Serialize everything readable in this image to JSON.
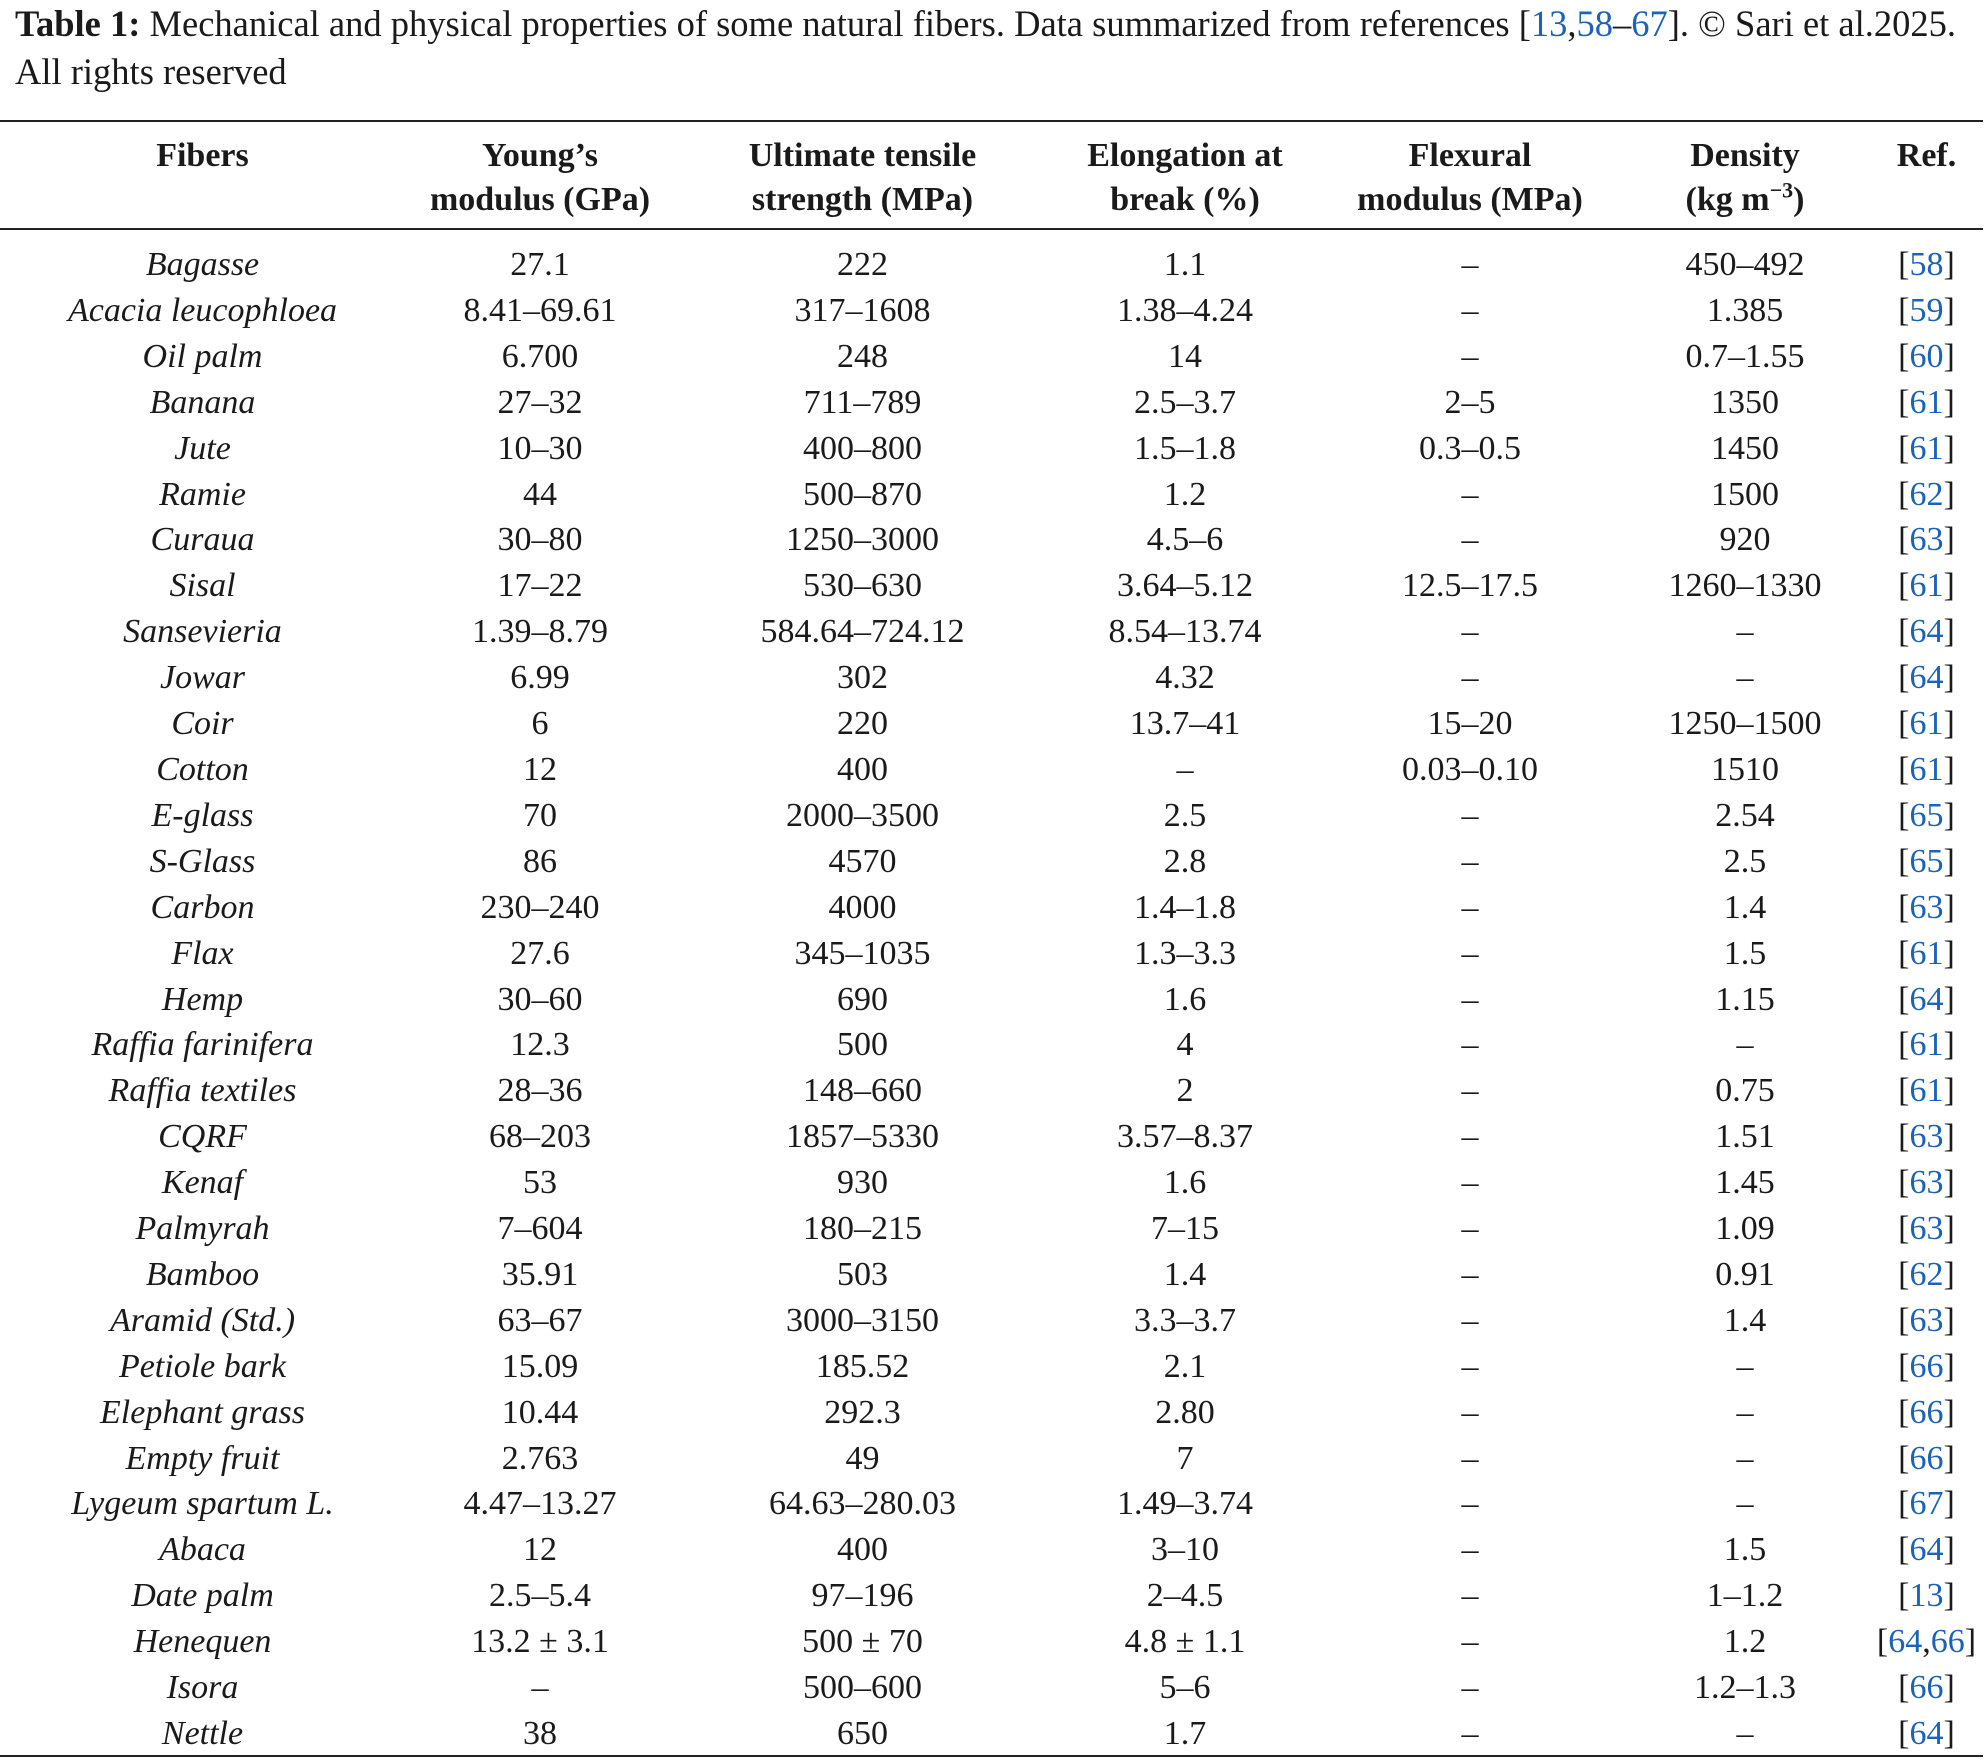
{
  "caption": {
    "label": "Table 1:",
    "text_before": " Mechanical and physical properties of some natural fibers. Data summarized from references [",
    "ref_a": "13",
    "sep1": ",",
    "ref_b": "58",
    "sep2": "–",
    "ref_c": "67",
    "text_after": "]. © Sari et al.2025. All rights reserved"
  },
  "columns": {
    "fibers": "Fibers",
    "youngs_line1": "Young’s",
    "youngs_line2": "modulus (GPa)",
    "uts_line1": "Ultimate tensile",
    "uts_line2": "strength (MPa)",
    "elong_line1": "Elongation at",
    "elong_line2": "break (%)",
    "flex_line1": "Flexural",
    "flex_line2": "modulus (MPa)",
    "density_line1": "Density",
    "density_line2_pre": "(kg m",
    "density_sup": "−3",
    "density_line2_post": ")",
    "ref": "Ref."
  },
  "rows": [
    {
      "fiber": "Bagasse",
      "youngs": "27.1",
      "uts": "222",
      "elong": "1.1",
      "flex": "–",
      "density": "450–492",
      "refs": [
        "58"
      ]
    },
    {
      "fiber": "Acacia leucophloea",
      "youngs": "8.41–69.61",
      "uts": "317–1608",
      "elong": "1.38–4.24",
      "flex": "–",
      "density": "1.385",
      "refs": [
        "59"
      ]
    },
    {
      "fiber": "Oil palm",
      "youngs": "6.700",
      "uts": "248",
      "elong": "14",
      "flex": "–",
      "density": "0.7–1.55",
      "refs": [
        "60"
      ]
    },
    {
      "fiber": "Banana",
      "youngs": "27–32",
      "uts": "711–789",
      "elong": "2.5–3.7",
      "flex": "2–5",
      "density": "1350",
      "refs": [
        "61"
      ]
    },
    {
      "fiber": "Jute",
      "youngs": "10–30",
      "uts": "400–800",
      "elong": "1.5–1.8",
      "flex": "0.3–0.5",
      "density": "1450",
      "refs": [
        "61"
      ]
    },
    {
      "fiber": "Ramie",
      "youngs": "44",
      "uts": "500–870",
      "elong": "1.2",
      "flex": "–",
      "density": "1500",
      "refs": [
        "62"
      ]
    },
    {
      "fiber": "Curaua",
      "youngs": "30–80",
      "uts": "1250–3000",
      "elong": "4.5–6",
      "flex": "–",
      "density": "920",
      "refs": [
        "63"
      ]
    },
    {
      "fiber": "Sisal",
      "youngs": "17–22",
      "uts": "530–630",
      "elong": "3.64–5.12",
      "flex": "12.5–17.5",
      "density": "1260–1330",
      "refs": [
        "61"
      ]
    },
    {
      "fiber": "Sansevieria",
      "youngs": "1.39–8.79",
      "uts": "584.64–724.12",
      "elong": "8.54–13.74",
      "flex": "–",
      "density": "–",
      "refs": [
        "64"
      ]
    },
    {
      "fiber": "Jowar",
      "youngs": "6.99",
      "uts": "302",
      "elong": "4.32",
      "flex": "–",
      "density": "–",
      "refs": [
        "64"
      ]
    },
    {
      "fiber": "Coir",
      "youngs": "6",
      "uts": "220",
      "elong": "13.7–41",
      "flex": "15–20",
      "density": "1250–1500",
      "refs": [
        "61"
      ]
    },
    {
      "fiber": "Cotton",
      "youngs": "12",
      "uts": "400",
      "elong": "–",
      "flex": "0.03–0.10",
      "density": "1510",
      "refs": [
        "61"
      ]
    },
    {
      "fiber": "E-glass",
      "youngs": "70",
      "uts": "2000–3500",
      "elong": "2.5",
      "flex": "–",
      "density": "2.54",
      "refs": [
        "65"
      ]
    },
    {
      "fiber": "S-Glass",
      "youngs": "86",
      "uts": "4570",
      "elong": "2.8",
      "flex": "–",
      "density": "2.5",
      "refs": [
        "65"
      ]
    },
    {
      "fiber": "Carbon",
      "youngs": "230–240",
      "uts": "4000",
      "elong": "1.4–1.8",
      "flex": "–",
      "density": "1.4",
      "refs": [
        "63"
      ]
    },
    {
      "fiber": "Flax",
      "youngs": "27.6",
      "uts": "345–1035",
      "elong": "1.3–3.3",
      "flex": "–",
      "density": "1.5",
      "refs": [
        "61"
      ]
    },
    {
      "fiber": "Hemp",
      "youngs": "30–60",
      "uts": "690",
      "elong": "1.6",
      "flex": "–",
      "density": "1.15",
      "refs": [
        "64"
      ]
    },
    {
      "fiber": "Raffia farinifera",
      "youngs": "12.3",
      "uts": "500",
      "elong": "4",
      "flex": "–",
      "density": "–",
      "refs": [
        "61"
      ]
    },
    {
      "fiber": "Raffia textiles",
      "youngs": "28–36",
      "uts": "148–660",
      "elong": "2",
      "flex": "–",
      "density": "0.75",
      "refs": [
        "61"
      ]
    },
    {
      "fiber": "CQRF",
      "youngs": "68–203",
      "uts": "1857–5330",
      "elong": "3.57–8.37",
      "flex": "–",
      "density": "1.51",
      "refs": [
        "63"
      ]
    },
    {
      "fiber": "Kenaf",
      "youngs": "53",
      "uts": "930",
      "elong": "1.6",
      "flex": "–",
      "density": "1.45",
      "refs": [
        "63"
      ]
    },
    {
      "fiber": "Palmyrah",
      "youngs": "7–604",
      "uts": "180–215",
      "elong": "7–15",
      "flex": "–",
      "density": "1.09",
      "refs": [
        "63"
      ]
    },
    {
      "fiber": "Bamboo",
      "youngs": "35.91",
      "uts": "503",
      "elong": "1.4",
      "flex": "–",
      "density": "0.91",
      "refs": [
        "62"
      ]
    },
    {
      "fiber": "Aramid (Std.)",
      "youngs": "63–67",
      "uts": "3000–3150",
      "elong": "3.3–3.7",
      "flex": "–",
      "density": "1.4",
      "refs": [
        "63"
      ]
    },
    {
      "fiber": "Petiole bark",
      "youngs": "15.09",
      "uts": "185.52",
      "elong": "2.1",
      "flex": "–",
      "density": "–",
      "refs": [
        "66"
      ]
    },
    {
      "fiber": "Elephant grass",
      "youngs": "10.44",
      "uts": "292.3",
      "elong": "2.80",
      "flex": "–",
      "density": "–",
      "refs": [
        "66"
      ]
    },
    {
      "fiber": "Empty fruit",
      "youngs": "2.763",
      "uts": "49",
      "elong": "7",
      "flex": "–",
      "density": "–",
      "refs": [
        "66"
      ]
    },
    {
      "fiber": "Lygeum spartum L.",
      "youngs": "4.47–13.27",
      "uts": "64.63–280.03",
      "elong": "1.49–3.74",
      "flex": "–",
      "density": "–",
      "refs": [
        "67"
      ]
    },
    {
      "fiber": "Abaca",
      "youngs": "12",
      "uts": "400",
      "elong": "3–10",
      "flex": "–",
      "density": "1.5",
      "refs": [
        "64"
      ]
    },
    {
      "fiber": "Date palm",
      "youngs": "2.5–5.4",
      "uts": "97–196",
      "elong": "2–4.5",
      "flex": "–",
      "density": "1–1.2",
      "refs": [
        "13"
      ]
    },
    {
      "fiber": "Henequen",
      "youngs": "13.2 ± 3.1",
      "uts": "500 ± 70",
      "elong": "4.8 ± 1.1",
      "flex": "–",
      "density": "1.2",
      "refs": [
        "64",
        "66"
      ]
    },
    {
      "fiber": "Isora",
      "youngs": "–",
      "uts": "500–600",
      "elong": "5–6",
      "flex": "–",
      "density": "1.2–1.3",
      "refs": [
        "66"
      ]
    },
    {
      "fiber": "Nettle",
      "youngs": "38",
      "uts": "650",
      "elong": "1.7",
      "flex": "–",
      "density": "–",
      "refs": [
        "64"
      ]
    }
  ],
  "style": {
    "link_color": "#1a63b8",
    "text_color": "#1a1a1a",
    "rule_color": "#222222"
  }
}
